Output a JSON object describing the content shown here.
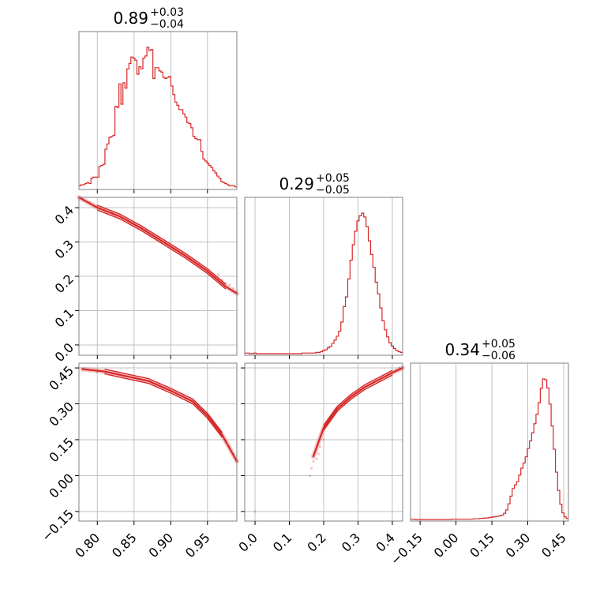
{
  "chart_data": {
    "type": "corner",
    "series_color": "#d62728",
    "grid": true,
    "parameters": [
      {
        "id": "p0",
        "title": "0.89",
        "title_plus": "+0.03",
        "title_minus": "−0.04",
        "range": [
          0.775,
          0.99
        ],
        "ticks": [
          0.8,
          0.85,
          0.9,
          0.95
        ],
        "tick_labels": [
          "0.80",
          "0.85",
          "0.90",
          "0.95"
        ]
      },
      {
        "id": "p1",
        "title": "0.29",
        "title_plus": "+0.05",
        "title_minus": "−0.05",
        "range": [
          -0.03,
          0.43
        ],
        "ticks": [
          0.0,
          0.1,
          0.2,
          0.3,
          0.4
        ],
        "tick_labels": [
          "0.0",
          "0.1",
          "0.2",
          "0.3",
          "0.4"
        ]
      },
      {
        "id": "p2",
        "title": "0.34",
        "title_plus": "+0.05",
        "title_minus": "−0.06",
        "range": [
          -0.19,
          0.47
        ],
        "ticks": [
          -0.15,
          0.0,
          0.15,
          0.3,
          0.45
        ],
        "tick_labels": [
          "−0.15",
          "0.00",
          "0.15",
          "0.30",
          "0.45"
        ]
      }
    ],
    "histograms": [
      {
        "param": "p0",
        "bin_range": [
          0.775,
          0.99
        ],
        "counts": [
          2,
          3,
          3,
          4,
          5,
          4,
          9,
          10,
          10,
          10,
          20,
          21,
          22,
          36,
          41,
          47,
          48,
          49,
          76,
          75,
          97,
          78,
          98,
          93,
          111,
          116,
          122,
          121,
          119,
          106,
          113,
          111,
          121,
          123,
          131,
          128,
          129,
          102,
          112,
          112,
          109,
          108,
          103,
          102,
          103,
          104,
          95,
          87,
          80,
          77,
          73,
          73,
          69,
          66,
          61,
          60,
          56,
          48,
          46,
          45,
          45,
          34,
          27,
          25,
          23,
          21,
          19,
          16,
          14,
          11,
          9,
          6,
          5,
          4,
          3,
          2,
          2,
          2,
          1
        ]
      },
      {
        "param": "p1",
        "bin_range": [
          -0.03,
          0.43
        ],
        "counts": [
          1,
          1,
          0,
          0,
          1,
          0,
          0,
          0,
          0,
          0,
          0,
          0,
          0,
          0,
          0,
          0,
          0,
          0,
          0,
          0,
          0,
          0,
          0,
          0,
          0,
          1,
          1,
          1,
          1,
          1,
          1,
          2,
          2,
          3,
          5,
          6,
          9,
          11,
          16,
          21,
          27,
          35,
          49,
          73,
          88,
          116,
          145,
          169,
          190,
          206,
          214,
          218,
          212,
          197,
          175,
          154,
          134,
          111,
          93,
          71,
          51,
          37,
          26,
          17,
          12,
          8,
          5,
          3,
          2
        ]
      },
      {
        "param": "p2",
        "bin_range": [
          -0.19,
          0.47
        ],
        "counts": [
          1,
          1,
          0,
          0,
          0,
          0,
          0,
          0,
          0,
          0,
          0,
          0,
          0,
          0,
          0,
          0,
          0,
          0,
          0,
          1,
          1,
          1,
          1,
          1,
          1,
          1,
          1,
          1,
          1,
          2,
          2,
          2,
          3,
          3,
          4,
          4,
          5,
          6,
          7,
          8,
          9,
          10,
          12,
          17,
          26,
          43,
          64,
          85,
          95,
          104,
          122,
          141,
          155,
          172,
          195,
          216,
          238,
          263,
          289,
          321,
          360,
          386,
          384,
          361,
          317,
          257,
          193,
          130,
          80,
          42,
          18,
          7,
          3
        ]
      }
    ],
    "pairs": [
      {
        "x": "p0",
        "y": "p1",
        "curve": {
          "x": [
            0.775,
            0.8,
            0.83,
            0.86,
            0.89,
            0.92,
            0.95,
            0.975,
            0.99
          ],
          "y": [
            0.43,
            0.4,
            0.375,
            0.34,
            0.3,
            0.26,
            0.215,
            0.17,
            0.15
          ]
        },
        "scatter": {
          "x": [
            0.78,
            0.79,
            0.8,
            0.81,
            0.82,
            0.965,
            0.97,
            0.975,
            0.98,
            0.985,
            0.99
          ],
          "y": [
            0.425,
            0.415,
            0.405,
            0.395,
            0.385,
            0.205,
            0.19,
            0.18,
            0.175,
            0.165,
            0.155
          ]
        }
      },
      {
        "x": "p0",
        "y": "p2",
        "curve": {
          "x": [
            0.78,
            0.81,
            0.84,
            0.87,
            0.9,
            0.93,
            0.95,
            0.97,
            0.99
          ],
          "y": [
            0.445,
            0.435,
            0.415,
            0.395,
            0.355,
            0.31,
            0.25,
            0.17,
            0.06
          ]
        },
        "scatter": {
          "x": [
            0.78,
            0.79,
            0.8,
            0.81,
            0.82,
            0.96,
            0.97,
            0.975,
            0.98,
            0.985,
            0.99
          ],
          "y": [
            0.445,
            0.44,
            0.435,
            0.43,
            0.425,
            0.21,
            0.17,
            0.14,
            0.12,
            0.09,
            0.06
          ]
        }
      },
      {
        "x": "p1",
        "y": "p2",
        "curve": {
          "x": [
            0.17,
            0.2,
            0.24,
            0.28,
            0.32,
            0.36,
            0.4,
            0.43
          ],
          "y": [
            0.08,
            0.2,
            0.28,
            0.33,
            0.37,
            0.4,
            0.43,
            0.45
          ]
        },
        "scatter": {
          "x": [
            0.16,
            0.165,
            0.17,
            0.18,
            0.185,
            0.19,
            0.2,
            0.41,
            0.42,
            0.43,
            0.0
          ],
          "y": [
            0.0,
            0.03,
            0.06,
            0.07,
            0.09,
            0.12,
            0.15,
            0.44,
            0.45,
            0.455,
            -0.15
          ]
        }
      }
    ]
  }
}
